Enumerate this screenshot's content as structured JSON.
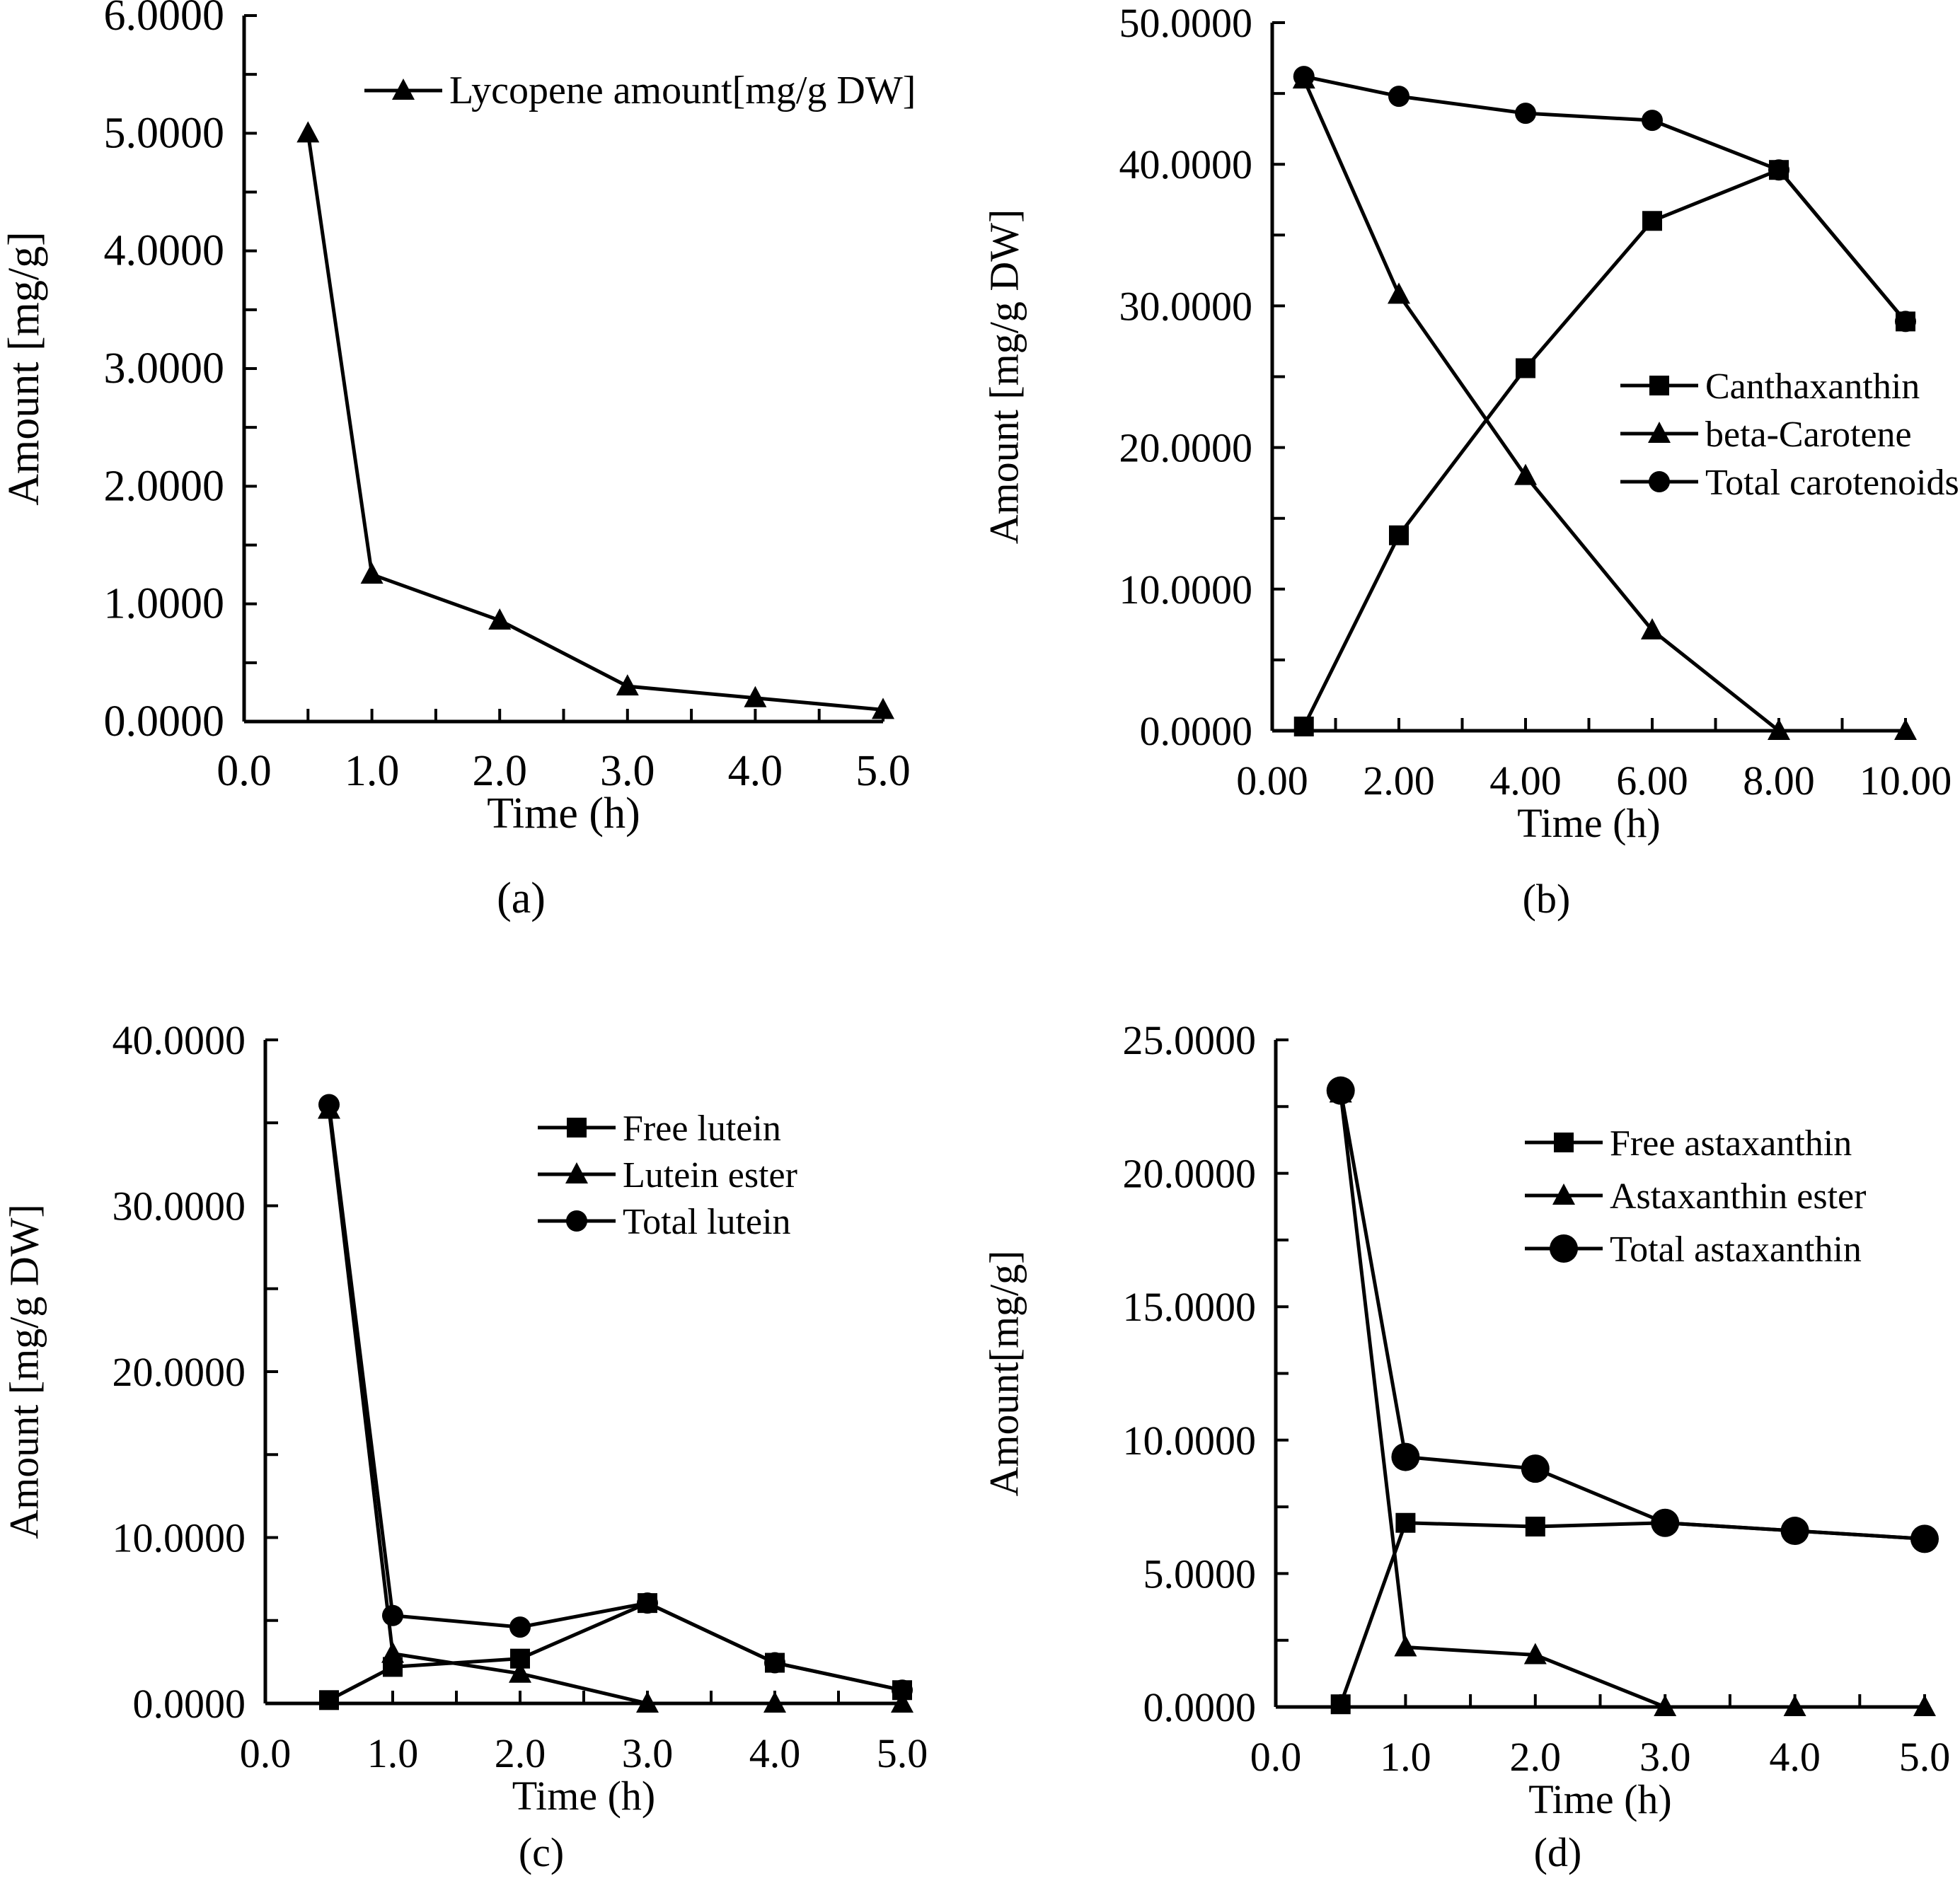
{
  "chart_data": [
    {
      "id": "a",
      "type": "line",
      "caption": "(a)",
      "title": "",
      "xlabel": "Time (h)",
      "ylabel": "Amount [mg/g]",
      "xlim": [
        0,
        5
      ],
      "ylim": [
        0,
        6
      ],
      "x_ticks": [
        "0.0",
        "1.0",
        "2.0",
        "3.0",
        "4.0",
        "5.0"
      ],
      "x_tick_values": [
        0,
        1,
        2,
        3,
        4,
        5
      ],
      "x_minor_step": 0.5,
      "y_ticks": [
        "0.0000",
        "1.0000",
        "2.0000",
        "3.0000",
        "4.0000",
        "5.0000",
        "6.0000"
      ],
      "y_tick_values": [
        0,
        1,
        2,
        3,
        4,
        5,
        6
      ],
      "y_minor_step": 0.5,
      "grid": false,
      "legend_position": "top-right",
      "series": [
        {
          "name": "Lycopene amount[mg/g DW]",
          "marker": "triangle",
          "x": [
            0.5,
            1.0,
            2.0,
            3.0,
            4.0,
            5.0
          ],
          "y": [
            5.0,
            1.25,
            0.86,
            0.3,
            0.2,
            0.1
          ]
        }
      ]
    },
    {
      "id": "b",
      "type": "line",
      "caption": "(b)",
      "title": "",
      "xlabel": "Time (h)",
      "ylabel": "Amount [mg/g DW]",
      "xlim": [
        0,
        10
      ],
      "ylim": [
        0,
        50
      ],
      "x_ticks": [
        "0.00",
        "2.00",
        "4.00",
        "6.00",
        "8.00",
        "10.00"
      ],
      "x_tick_values": [
        0,
        2,
        4,
        6,
        8,
        10
      ],
      "x_minor_step": 1,
      "y_ticks": [
        "0.0000",
        "10.0000",
        "20.0000",
        "30.0000",
        "40.0000",
        "50.0000"
      ],
      "y_tick_values": [
        0,
        10,
        20,
        30,
        40,
        50
      ],
      "y_minor_step": 5,
      "grid": false,
      "legend_position": "center-right",
      "series": [
        {
          "name": "Canthaxanthin",
          "marker": "square",
          "x": [
            0.5,
            2,
            4,
            6,
            8,
            10
          ],
          "y": [
            0.3,
            13.8,
            25.6,
            36.0,
            39.6,
            28.9
          ]
        },
        {
          "name": "beta-Carotene",
          "marker": "triangle",
          "x": [
            0.5,
            2,
            4,
            6,
            8,
            10
          ],
          "y": [
            46.0,
            30.8,
            18.0,
            7.1,
            0.0,
            0.0
          ]
        },
        {
          "name": "Total carotenoids",
          "marker": "circle",
          "x": [
            0.5,
            2,
            4,
            6,
            8,
            10
          ],
          "y": [
            46.2,
            44.8,
            43.6,
            43.1,
            39.6,
            28.9
          ]
        }
      ]
    },
    {
      "id": "c",
      "type": "line",
      "caption": "(c)",
      "title": "",
      "xlabel": "Time (h)",
      "ylabel": "Amount [mg/g DW]",
      "xlim": [
        0,
        5
      ],
      "ylim": [
        0,
        40
      ],
      "x_ticks": [
        "0.0",
        "1.0",
        "2.0",
        "3.0",
        "4.0",
        "5.0"
      ],
      "x_tick_values": [
        0,
        1,
        2,
        3,
        4,
        5
      ],
      "x_minor_step": 0.5,
      "y_ticks": [
        "0.0000",
        "10.0000",
        "20.0000",
        "30.0000",
        "40.0000"
      ],
      "y_tick_values": [
        0,
        10,
        20,
        30,
        40
      ],
      "y_minor_step": 5,
      "grid": false,
      "legend_position": "top-right",
      "series": [
        {
          "name": "Free lutein",
          "marker": "square",
          "x": [
            0.5,
            1,
            2,
            3,
            4,
            5
          ],
          "y": [
            0.2,
            2.2,
            2.7,
            6.05,
            2.45,
            0.8
          ]
        },
        {
          "name": "Lutein ester",
          "marker": "triangle",
          "x": [
            0.5,
            1,
            2,
            3,
            4,
            5
          ],
          "y": [
            35.8,
            3.0,
            1.8,
            0.0,
            0.0,
            0.0
          ]
        },
        {
          "name": "Total lutein",
          "marker": "circle",
          "x": [
            0.5,
            1,
            2,
            3,
            4,
            5
          ],
          "y": [
            36.1,
            5.3,
            4.6,
            6.05,
            2.45,
            0.8
          ]
        }
      ]
    },
    {
      "id": "d",
      "type": "line",
      "caption": "(d)",
      "title": "",
      "xlabel": "Time (h)",
      "ylabel": "Amount[mg/g]",
      "xlim": [
        0,
        5
      ],
      "ylim": [
        0,
        25
      ],
      "x_ticks": [
        "0.0",
        "1.0",
        "2.0",
        "3.0",
        "4.0",
        "5.0"
      ],
      "x_tick_values": [
        0,
        1,
        2,
        3,
        4,
        5
      ],
      "x_minor_step": 0.5,
      "y_ticks": [
        "0.0000",
        "5.0000",
        "10.0000",
        "15.0000",
        "20.0000",
        "25.0000"
      ],
      "y_tick_values": [
        0,
        5,
        10,
        15,
        20,
        25
      ],
      "y_minor_step": 2.5,
      "grid": false,
      "legend_position": "top-right",
      "series": [
        {
          "name": "Free astaxanthin",
          "marker": "square",
          "x": [
            0.5,
            1,
            2,
            3,
            4,
            5
          ],
          "y": [
            0.1,
            6.9,
            6.76,
            6.9,
            6.6,
            6.3
          ]
        },
        {
          "name": "Astaxanthin ester",
          "marker": "triangle",
          "x": [
            0.5,
            1,
            2,
            3,
            4,
            5
          ],
          "y": [
            23.0,
            2.24,
            1.95,
            0.0,
            0.0,
            0.0
          ]
        },
        {
          "name": "Total astaxanthin",
          "marker": "bigcircle",
          "x": [
            0.5,
            1,
            2,
            3,
            4,
            5
          ],
          "y": [
            23.1,
            9.37,
            8.93,
            6.9,
            6.6,
            6.3
          ]
        }
      ]
    }
  ]
}
